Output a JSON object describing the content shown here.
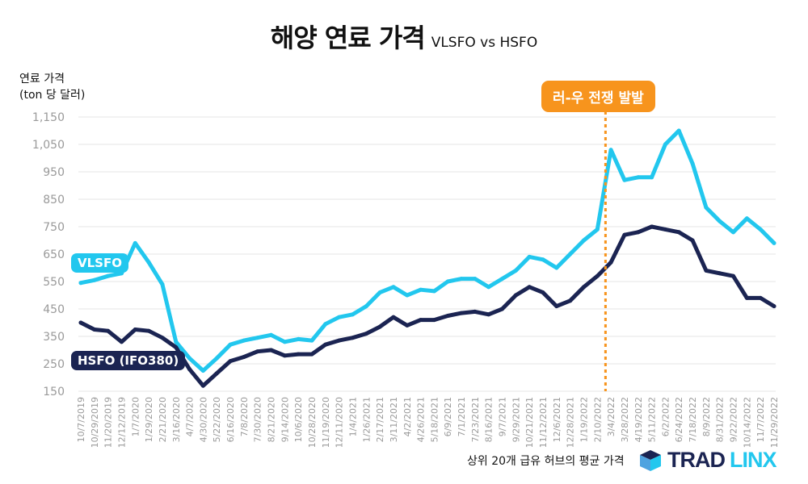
{
  "title": "해양 연료 가격",
  "subtitle": "VLSFO vs HSFO",
  "footnote": "상위 20개 급유 허브의 평균 가격",
  "logo": {
    "part1": "TRAD",
    "part2": "LINX"
  },
  "colors": {
    "vlsfo": "#22c7ee",
    "hsfo": "#1b2452",
    "event": "#f7941d",
    "grid": "#e6e6e6"
  },
  "chart_data": {
    "type": "line",
    "ylabel": "연료 가격\n(ton 당 달러)",
    "ylabel_lines": [
      "연료 가격",
      "(ton 당 달러)"
    ],
    "ylim": [
      150,
      1150
    ],
    "yticks": [
      "1,150",
      "1,050",
      "950",
      "850",
      "750",
      "650",
      "550",
      "450",
      "350",
      "250",
      "150"
    ],
    "grid": true,
    "categories": [
      "10/7/2019",
      "10/29/2019",
      "11/20/2019",
      "12/12/2019",
      "1/7/2020",
      "1/29/2020",
      "2/21/2020",
      "3/16/2020",
      "4/7/2020",
      "4/30/2020",
      "5/22/2020",
      "6/16/2020",
      "7/8/2020",
      "7/30/2020",
      "8/21/2020",
      "9/14/2020",
      "10/6/2020",
      "10/28/2020",
      "11/19/2020",
      "12/11/2020",
      "1/4/2021",
      "1/26/2021",
      "2/17/2021",
      "3/11/2021",
      "4/2/2021",
      "4/26/2021",
      "5/18/2021",
      "6/9/2021",
      "7/1/2021",
      "7/23/2021",
      "8/16/2021",
      "9/7/2021",
      "9/29/2021",
      "10/21/2021",
      "11/12/2021",
      "12/6/2021",
      "12/28/2021",
      "1/19/2022",
      "2/10/2022",
      "3/4/2022",
      "3/28/2022",
      "4/19/2022",
      "5/11/2022",
      "6/2/2022",
      "6/24/2022",
      "7/18/2022",
      "8/9/2022",
      "8/31/2022",
      "9/22/2022",
      "10/14/2022",
      "11/7/2022",
      "11/29/2022"
    ],
    "series": [
      {
        "name": "VLSFO",
        "values": [
          545,
          555,
          570,
          580,
          690,
          620,
          540,
          330,
          270,
          225,
          270,
          320,
          335,
          345,
          355,
          330,
          340,
          335,
          395,
          420,
          430,
          460,
          510,
          530,
          500,
          520,
          515,
          550,
          560,
          560,
          530,
          560,
          590,
          640,
          630,
          600,
          650,
          700,
          740,
          1030,
          920,
          930,
          930,
          1050,
          1100,
          980,
          820,
          770,
          730,
          780,
          740,
          690
        ]
      },
      {
        "name": "HSFO (IFO380)",
        "values": [
          400,
          375,
          370,
          330,
          375,
          370,
          345,
          310,
          230,
          170,
          215,
          260,
          275,
          295,
          300,
          280,
          285,
          285,
          320,
          335,
          345,
          360,
          385,
          420,
          390,
          410,
          410,
          425,
          435,
          440,
          430,
          450,
          500,
          530,
          510,
          460,
          480,
          530,
          570,
          620,
          720,
          730,
          750,
          740,
          730,
          700,
          590,
          580,
          570,
          490,
          490,
          460
        ]
      }
    ],
    "event": {
      "label": "러-우 전쟁 발발",
      "x_index": 38.6
    }
  }
}
